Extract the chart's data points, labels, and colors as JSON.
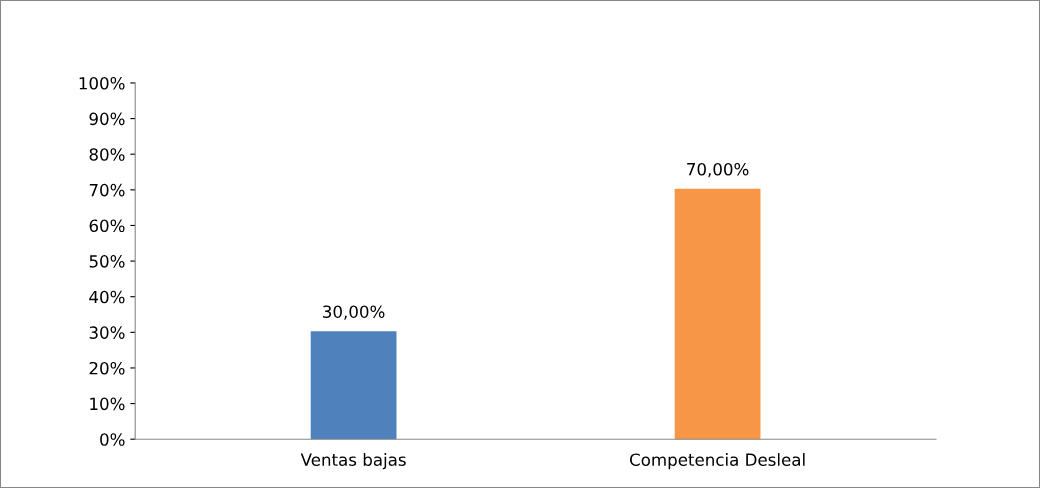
{
  "chart_data": {
    "type": "bar",
    "categories": [
      "Ventas bajas",
      "Competencia Desleal"
    ],
    "values": [
      30,
      70
    ],
    "colors": [
      "#4f81bd",
      "#f79646"
    ],
    "value_labels": [
      "30,00%",
      "70,00%"
    ],
    "ylim": [
      0,
      100
    ],
    "yticks": [
      {
        "value": 0,
        "label": "0%"
      },
      {
        "value": 10,
        "label": "10%"
      },
      {
        "value": 20,
        "label": "20%"
      },
      {
        "value": 30,
        "label": "30%"
      },
      {
        "value": 40,
        "label": "40%"
      },
      {
        "value": 50,
        "label": "50%"
      },
      {
        "value": 60,
        "label": "60%"
      },
      {
        "value": 70,
        "label": "70%"
      },
      {
        "value": 80,
        "label": "80%"
      },
      {
        "value": 90,
        "label": "90%"
      },
      {
        "value": 100,
        "label": "100%"
      }
    ],
    "grid": false
  }
}
